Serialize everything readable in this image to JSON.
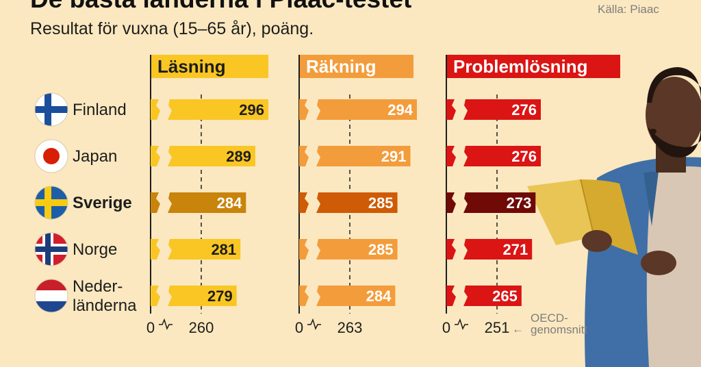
{
  "title": "De bästa länderna i Piaac-testet",
  "subtitle": "Resultat för vuxna (15–65 år), poäng.",
  "source": "Källa: Piaac",
  "chart_data": [
    {
      "type": "bar",
      "title": "Läsning",
      "categories": [
        "Finland",
        "Japan",
        "Sverige",
        "Norge",
        "Nederländerna"
      ],
      "values": [
        296,
        289,
        284,
        281,
        279
      ],
      "oecd_average": 260,
      "axis_labels": [
        "0",
        "260"
      ],
      "axis_break": true,
      "colors": {
        "header": "#f9c623",
        "bar": "#f9c623",
        "highlight": "#c8840b",
        "text": "#1d1d1b",
        "highlight_text": "#ffffff"
      }
    },
    {
      "type": "bar",
      "title": "Räkning",
      "categories": [
        "Finland",
        "Japan",
        "Sverige",
        "Norge",
        "Nederländerna"
      ],
      "values": [
        294,
        291,
        285,
        285,
        284
      ],
      "oecd_average": 263,
      "axis_labels": [
        "0",
        "263"
      ],
      "axis_break": true,
      "colors": {
        "header": "#f39c3b",
        "bar": "#f39c3b",
        "highlight": "#cf5b06",
        "text": "#ffffff",
        "highlight_text": "#ffffff"
      }
    },
    {
      "type": "bar",
      "title": "Problemlösning",
      "categories": [
        "Finland",
        "Japan",
        "Sverige",
        "Norge",
        "Nederländerna"
      ],
      "values": [
        276,
        276,
        273,
        271,
        265
      ],
      "oecd_average": 251,
      "axis_labels": [
        "0",
        "251"
      ],
      "axis_break": true,
      "colors": {
        "header": "#db1414",
        "bar": "#db1414",
        "highlight": "#6f0a06",
        "text": "#ffffff",
        "highlight_text": "#ffffff"
      }
    }
  ],
  "countries": [
    {
      "name": "Finland",
      "flag": "finland-flag",
      "bold": false
    },
    {
      "name": "Japan",
      "flag": "japan-flag",
      "bold": false
    },
    {
      "name": "Sverige",
      "flag": "sweden-flag",
      "bold": true
    },
    {
      "name": "Norge",
      "flag": "norway-flag",
      "bold": false
    },
    {
      "name": "Neder-\nländerna",
      "flag": "netherlands-flag",
      "bold": false
    }
  ],
  "highlight_country": "Sverige",
  "oecd_label": "OECD-\ngenomsnitt",
  "oecd_arrow": "←",
  "illustration": "man-reading-book",
  "background_color": "#fbe8c0"
}
